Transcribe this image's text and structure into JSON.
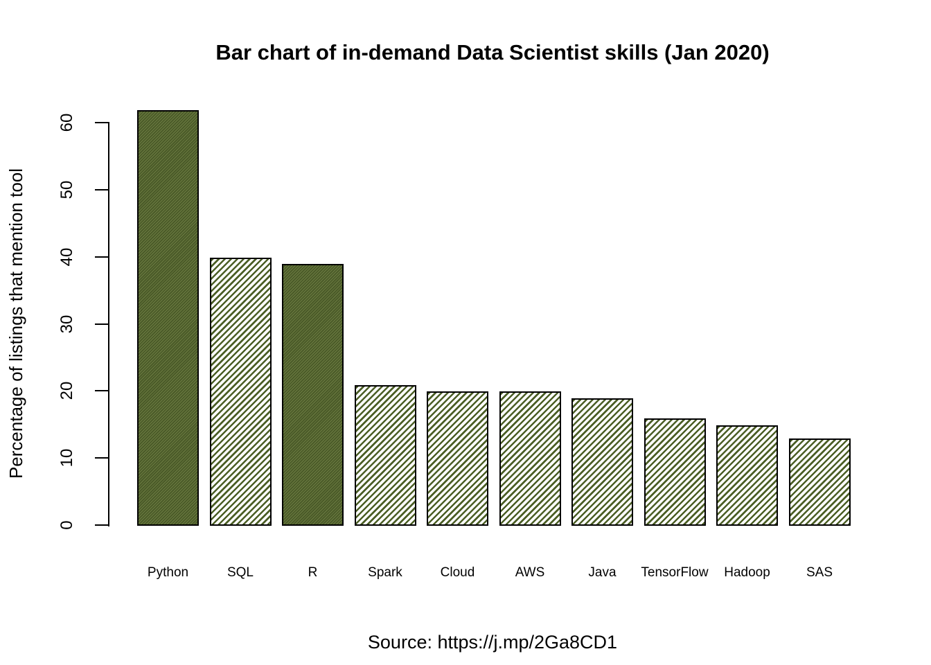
{
  "header": {
    "title": "Bar chart of in-demand Data Scientist skills (Jan 2020)"
  },
  "footer": {
    "source": "Source: https://j.mp/2Ga8CD1"
  },
  "chart_data": {
    "type": "bar",
    "title": "Bar chart of in-demand Data Scientist skills (Jan 2020)",
    "categories": [
      "Python",
      "SQL",
      "R",
      "Spark",
      "Cloud",
      "AWS",
      "Java",
      "TensorFlow",
      "Hadoop",
      "SAS"
    ],
    "values": [
      62,
      40,
      39,
      21,
      20,
      20,
      19,
      16,
      15,
      13
    ],
    "bar_patterns": [
      "dense",
      "sparse",
      "dense",
      "sparse",
      "sparse",
      "sparse",
      "sparse",
      "sparse",
      "sparse",
      "sparse"
    ],
    "xlabel": "",
    "ylabel": "Percentage of listings that mention tool",
    "ylim": [
      0,
      63
    ],
    "yticks": [
      0,
      10,
      20,
      30,
      40,
      50,
      60
    ],
    "grid": false,
    "legend": null,
    "annotation": "Source: https://j.mp/2Ga8CD1",
    "colors": {
      "dense_base": "#4a5a28",
      "dense_light_line": "#6c7c42",
      "stripe_green": "#4b5e25",
      "stripe_background": "#ffffff",
      "axis": "#000000",
      "background": "#ffffff",
      "text": "#000000"
    }
  }
}
